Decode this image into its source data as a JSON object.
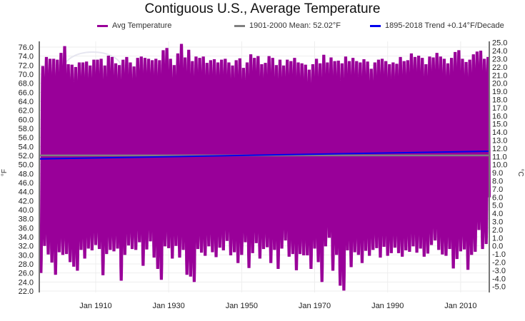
{
  "chart_data": {
    "type": "line",
    "title": "Contiguous U.S., Average Temperature",
    "xlabel": "",
    "ylabel": "°F",
    "y2label": "°C",
    "x_range": [
      "1894-07",
      "2017-11"
    ],
    "ylim": [
      22.0,
      77.0
    ],
    "y2lim": [
      -5.56,
      25.0
    ],
    "grid": true,
    "legend_placement": "top",
    "x_ticks": [
      "Jan 1910",
      "Jan 1930",
      "Jan 1950",
      "Jan 1970",
      "Jan 1990",
      "Jan 2010"
    ],
    "x_tick_years": [
      1910,
      1930,
      1950,
      1970,
      1990,
      2010
    ],
    "y_ticks": [
      "22.0",
      "24.0",
      "26.0",
      "28.0",
      "30.0",
      "32.0",
      "34.0",
      "36.0",
      "38.0",
      "40.0",
      "42.0",
      "44.0",
      "46.0",
      "48.0",
      "50.0",
      "52.0",
      "54.0",
      "56.0",
      "58.0",
      "60.0",
      "62.0",
      "64.0",
      "66.0",
      "68.0",
      "70.0",
      "72.0",
      "74.0",
      "76.0"
    ],
    "y2_ticks": [
      "-5.0",
      "-4.0",
      "-3.0",
      "-2.0",
      "-1.0",
      "0.0",
      "1.0",
      "2.0",
      "3.0",
      "4.0",
      "5.0",
      "6.0",
      "7.0",
      "8.0",
      "9.0",
      "10.0",
      "11.0",
      "12.0",
      "13.0",
      "14.0",
      "15.0",
      "16.0",
      "17.0",
      "18.0",
      "19.0",
      "20.0",
      "21.0",
      "22.0",
      "23.0",
      "24.0",
      "25.0"
    ],
    "series": [
      {
        "name": "Avg Temperature",
        "color": "#990099",
        "style": "monthly seasonal cycle",
        "start_year": 1895,
        "summer_max_by_year": [
          71.8,
          73.8,
          73.4,
          73.4,
          73.2,
          74.7,
          76.2,
          72.2,
          72.1,
          71.6,
          72.6,
          72.6,
          72.8,
          71.9,
          73.2,
          73.2,
          73.4,
          71.9,
          74.1,
          73.8,
          72.4,
          72.0,
          73.2,
          73.8,
          72.6,
          71.7,
          73.6,
          73.9,
          73.6,
          73.4,
          73.1,
          73.4,
          73.1,
          75.3,
          75.8,
          73.4,
          72.0,
          74.6,
          76.7,
          73.7,
          75.4,
          72.9,
          73.9,
          73.6,
          73.9,
          72.5,
          73.1,
          73.3,
          72.6,
          73.2,
          73.4,
          72.6,
          71.9,
          73.1,
          73.5,
          71.4,
          72.6,
          74.4,
          73.6,
          74.0,
          72.2,
          72.5,
          74.0,
          73.6,
          72.0,
          73.2,
          71.9,
          73.2,
          72.9,
          73.6,
          72.6,
          72.4,
          72.1,
          71.0,
          72.2,
          73.4,
          72.4,
          74.3,
          72.6,
          73.7,
          72.9,
          73.0,
          72.4,
          73.9,
          72.9,
          73.6,
          72.9,
          72.6,
          73.3,
          72.8,
          71.2,
          72.6,
          73.2,
          73.4,
          72.9,
          72.2,
          72.6,
          72.3,
          73.8,
          72.9,
          73.1,
          74.6,
          73.8,
          74.1,
          73.6,
          72.2,
          73.9,
          73.7,
          74.7,
          73.9,
          73.4,
          72.4,
          73.6,
          74.9,
          75.3,
          73.4,
          72.7,
          73.2,
          74.4,
          75.0,
          75.2,
          73.4,
          73.8
        ],
        "winter_min_by_year": [
          26.0,
          32.0,
          30.1,
          28.3,
          25.6,
          30.6,
          30.0,
          30.2,
          28.4,
          27.4,
          26.5,
          31.1,
          29.2,
          31.4,
          31.0,
          32.2,
          31.3,
          25.5,
          30.2,
          31.1,
          30.8,
          31.4,
          24.3,
          30.0,
          32.1,
          31.3,
          31.1,
          32.8,
          27.6,
          31.2,
          33.0,
          29.4,
          26.9,
          24.5,
          31.9,
          31.5,
          29.2,
          32.0,
          29.4,
          31.1,
          25.6,
          25.2,
          24.0,
          31.3,
          30.5,
          29.8,
          31.9,
          30.6,
          29.5,
          31.6,
          31.0,
          33.1,
          29.9,
          30.6,
          28.2,
          30.0,
          32.8,
          27.1,
          30.4,
          32.6,
          29.2,
          31.3,
          31.7,
          28.2,
          31.1,
          26.9,
          31.4,
          33.2,
          29.6,
          30.2,
          26.6,
          30.2,
          29.9,
          29.9,
          26.9,
          31.4,
          28.4,
          24.0,
          31.9,
          33.8,
          26.5,
          30.0,
          23.2,
          22.1,
          31.0,
          27.3,
          30.6,
          30.0,
          28.2,
          30.9,
          29.8,
          31.1,
          31.5,
          29.4,
          31.8,
          29.8,
          30.4,
          31.6,
          30.4,
          29.6,
          31.0,
          30.7,
          31.9,
          30.5,
          31.4,
          29.6,
          30.3,
          32.2,
          33.2,
          31.1,
          30.1,
          29.8,
          31.3,
          27.0,
          29.1,
          30.8,
          31.2,
          26.7,
          30.0,
          30.7,
          35.5,
          31.3,
          32.4,
          32.6
        ]
      },
      {
        "name": "1901-2000 Mean: 52.02°F",
        "color": "#808080",
        "value": 52.02
      },
      {
        "name": "1895-2018 Trend +0.14°F/Decade",
        "color": "#0000ee",
        "slope_per_decade": 0.14,
        "start_value": 51.25,
        "end_value": 52.95
      }
    ]
  },
  "legend": [
    {
      "label": "Avg Temperature",
      "color": "#990099"
    },
    {
      "label": "1901-2000 Mean: 52.02°F",
      "color": "#808080"
    },
    {
      "label": "1895-2018 Trend +0.14°F/Decade",
      "color": "#0000ee"
    }
  ]
}
